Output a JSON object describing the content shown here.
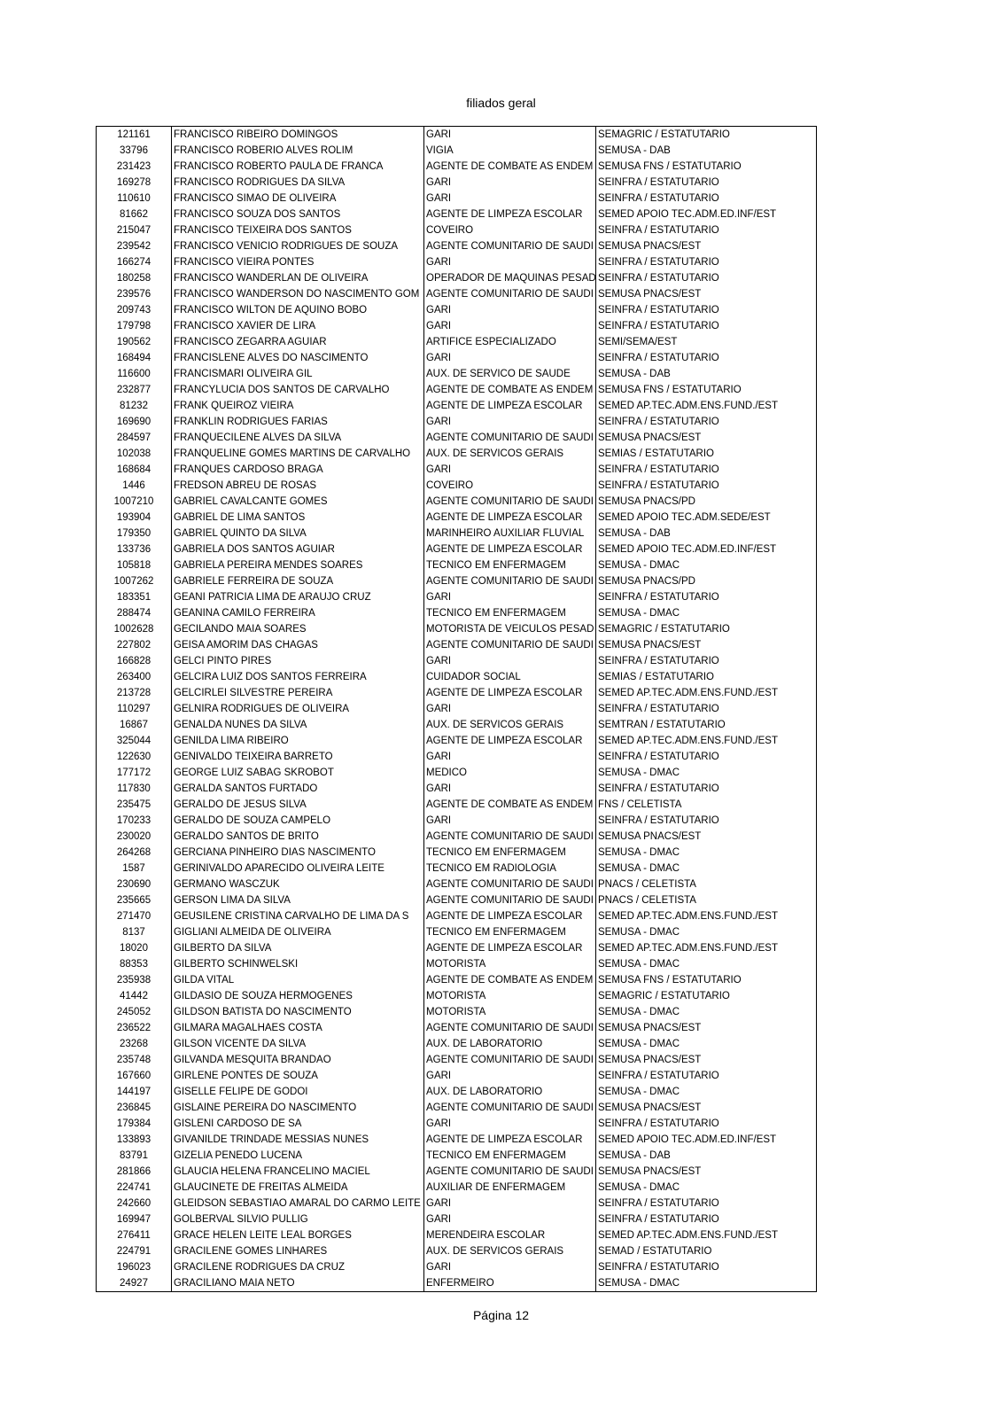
{
  "header": {
    "title": "filiados geral"
  },
  "table": {
    "rows": [
      [
        "121161",
        "FRANCISCO RIBEIRO DOMINGOS",
        "GARI",
        "SEMAGRIC / ESTATUTARIO"
      ],
      [
        "33796",
        "FRANCISCO ROBERIO ALVES ROLIM",
        "VIGIA",
        "SEMUSA - DAB"
      ],
      [
        "231423",
        "FRANCISCO ROBERTO PAULA DE FRANCA",
        "AGENTE DE COMBATE AS ENDEM",
        "SEMUSA FNS / ESTATUTARIO"
      ],
      [
        "169278",
        "FRANCISCO RODRIGUES DA SILVA",
        "GARI",
        "SEINFRA / ESTATUTARIO"
      ],
      [
        "110610",
        "FRANCISCO SIMAO DE OLIVEIRA",
        "GARI",
        "SEINFRA / ESTATUTARIO"
      ],
      [
        "81662",
        "FRANCISCO SOUZA DOS SANTOS",
        "AGENTE DE LIMPEZA ESCOLAR",
        "SEMED APOIO TEC.ADM.ED.INF/EST"
      ],
      [
        "215047",
        "FRANCISCO TEIXEIRA DOS SANTOS",
        "COVEIRO",
        "SEINFRA / ESTATUTARIO"
      ],
      [
        "239542",
        "FRANCISCO VENICIO RODRIGUES DE SOUZA",
        "AGENTE COMUNITARIO DE SAUDI",
        "SEMUSA PNACS/EST"
      ],
      [
        "166274",
        "FRANCISCO VIEIRA PONTES",
        "GARI",
        "SEINFRA / ESTATUTARIO"
      ],
      [
        "180258",
        "FRANCISCO WANDERLAN DE OLIVEIRA",
        "OPERADOR DE MAQUINAS PESAD",
        "SEINFRA / ESTATUTARIO"
      ],
      [
        "239576",
        "FRANCISCO WANDERSON DO NASCIMENTO GOM",
        "AGENTE COMUNITARIO DE SAUDI",
        "SEMUSA PNACS/EST"
      ],
      [
        "209743",
        "FRANCISCO WILTON DE AQUINO BOBO",
        "GARI",
        "SEINFRA / ESTATUTARIO"
      ],
      [
        "179798",
        "FRANCISCO XAVIER DE LIRA",
        "GARI",
        "SEINFRA / ESTATUTARIO"
      ],
      [
        "190562",
        "FRANCISCO ZEGARRA AGUIAR",
        "ARTIFICE ESPECIALIZADO",
        "SEMI/SEMA/EST"
      ],
      [
        "168494",
        "FRANCISLENE ALVES DO NASCIMENTO",
        "GARI",
        "SEINFRA / ESTATUTARIO"
      ],
      [
        "116600",
        "FRANCISMARI OLIVEIRA GIL",
        "AUX. DE SERVICO DE SAUDE",
        "SEMUSA - DAB"
      ],
      [
        "232877",
        "FRANCYLUCIA DOS SANTOS DE CARVALHO",
        "AGENTE DE COMBATE AS ENDEM",
        "SEMUSA FNS / ESTATUTARIO"
      ],
      [
        "81232",
        "FRANK QUEIROZ VIEIRA",
        "AGENTE DE LIMPEZA ESCOLAR",
        "SEMED AP.TEC.ADM.ENS.FUND./EST"
      ],
      [
        "169690",
        "FRANKLIN RODRIGUES FARIAS",
        "GARI",
        "SEINFRA / ESTATUTARIO"
      ],
      [
        "284597",
        "FRANQUECILENE ALVES DA SILVA",
        "AGENTE COMUNITARIO DE SAUDI",
        "SEMUSA PNACS/EST"
      ],
      [
        "102038",
        "FRANQUELINE GOMES MARTINS DE CARVALHO",
        "AUX. DE SERVICOS GERAIS",
        "SEMIAS / ESTATUTARIO"
      ],
      [
        "168684",
        "FRANQUES CARDOSO BRAGA",
        "GARI",
        "SEINFRA / ESTATUTARIO"
      ],
      [
        "1446",
        "FREDSON ABREU DE ROSAS",
        "COVEIRO",
        "SEINFRA / ESTATUTARIO"
      ],
      [
        "1007210",
        "GABRIEL CAVALCANTE GOMES",
        "AGENTE COMUNITARIO DE SAUDI",
        "SEMUSA PNACS/PD"
      ],
      [
        "193904",
        "GABRIEL DE LIMA SANTOS",
        "AGENTE DE LIMPEZA ESCOLAR",
        "SEMED APOIO TEC.ADM.SEDE/EST"
      ],
      [
        "179350",
        "GABRIEL QUINTO DA SILVA",
        "MARINHEIRO AUXILIAR FLUVIAL",
        "SEMUSA - DAB"
      ],
      [
        "133736",
        "GABRIELA DOS SANTOS AGUIAR",
        "AGENTE DE LIMPEZA ESCOLAR",
        "SEMED APOIO TEC.ADM.ED.INF/EST"
      ],
      [
        "105818",
        "GABRIELA PEREIRA MENDES SOARES",
        "TECNICO EM ENFERMAGEM",
        "SEMUSA - DMAC"
      ],
      [
        "1007262",
        "GABRIELE FERREIRA DE SOUZA",
        "AGENTE COMUNITARIO DE SAUDI",
        "SEMUSA PNACS/PD"
      ],
      [
        "183351",
        "GEANI PATRICIA LIMA DE ARAUJO CRUZ",
        "GARI",
        "SEINFRA / ESTATUTARIO"
      ],
      [
        "288474",
        "GEANINA CAMILO FERREIRA",
        "TECNICO EM ENFERMAGEM",
        "SEMUSA - DMAC"
      ],
      [
        "1002628",
        "GECILANDO MAIA SOARES",
        "MOTORISTA DE VEICULOS PESAD",
        "SEMAGRIC / ESTATUTARIO"
      ],
      [
        "227802",
        "GEISA AMORIM DAS CHAGAS",
        "AGENTE COMUNITARIO DE SAUDI",
        "SEMUSA PNACS/EST"
      ],
      [
        "166828",
        "GELCI PINTO PIRES",
        "GARI",
        "SEINFRA / ESTATUTARIO"
      ],
      [
        "263400",
        "GELCIRA LUIZ DOS SANTOS FERREIRA",
        "CUIDADOR SOCIAL",
        "SEMIAS / ESTATUTARIO"
      ],
      [
        "213728",
        "GELCIRLEI SILVESTRE PEREIRA",
        "AGENTE DE LIMPEZA ESCOLAR",
        "SEMED AP.TEC.ADM.ENS.FUND./EST"
      ],
      [
        "110297",
        "GELNIRA RODRIGUES DE OLIVEIRA",
        "GARI",
        "SEINFRA / ESTATUTARIO"
      ],
      [
        "16867",
        "GENALDA NUNES DA SILVA",
        "AUX. DE SERVICOS GERAIS",
        "SEMTRAN / ESTATUTARIO"
      ],
      [
        "325044",
        "GENILDA LIMA RIBEIRO",
        "AGENTE DE LIMPEZA ESCOLAR",
        "SEMED AP.TEC.ADM.ENS.FUND./EST"
      ],
      [
        "122630",
        "GENIVALDO TEIXEIRA BARRETO",
        "GARI",
        "SEINFRA / ESTATUTARIO"
      ],
      [
        "177172",
        "GEORGE LUIZ SABAG SKROBOT",
        "MEDICO",
        "SEMUSA - DMAC"
      ],
      [
        "117830",
        "GERALDA SANTOS FURTADO",
        "GARI",
        "SEINFRA / ESTATUTARIO"
      ],
      [
        "235475",
        "GERALDO DE JESUS SILVA",
        "AGENTE DE COMBATE AS ENDEM",
        "FNS / CELETISTA"
      ],
      [
        "170233",
        "GERALDO DE SOUZA CAMPELO",
        "GARI",
        "SEINFRA / ESTATUTARIO"
      ],
      [
        "230020",
        "GERALDO SANTOS DE BRITO",
        "AGENTE COMUNITARIO DE SAUDI",
        "SEMUSA PNACS/EST"
      ],
      [
        "264268",
        "GERCIANA PINHEIRO DIAS NASCIMENTO",
        "TECNICO EM ENFERMAGEM",
        "SEMUSA - DMAC"
      ],
      [
        "1587",
        "GERINIVALDO APARECIDO OLIVEIRA LEITE",
        "TECNICO EM RADIOLOGIA",
        "SEMUSA - DMAC"
      ],
      [
        "230690",
        "GERMANO WASCZUK",
        "AGENTE COMUNITARIO DE SAUDI",
        "PNACS / CELETISTA"
      ],
      [
        "235665",
        "GERSON LIMA DA SILVA",
        "AGENTE COMUNITARIO DE SAUDI",
        "PNACS / CELETISTA"
      ],
      [
        "271470",
        "GEUSILENE CRISTINA CARVALHO DE LIMA DA S",
        "AGENTE DE LIMPEZA ESCOLAR",
        "SEMED AP.TEC.ADM.ENS.FUND./EST"
      ],
      [
        "8137",
        "GIGLIANI ALMEIDA DE OLIVEIRA",
        "TECNICO EM ENFERMAGEM",
        "SEMUSA - DMAC"
      ],
      [
        "18020",
        "GILBERTO DA SILVA",
        "AGENTE DE LIMPEZA ESCOLAR",
        "SEMED AP.TEC.ADM.ENS.FUND./EST"
      ],
      [
        "88353",
        "GILBERTO SCHINWELSKI",
        "MOTORISTA",
        "SEMUSA - DMAC"
      ],
      [
        "235938",
        "GILDA VITAL",
        "AGENTE DE COMBATE AS ENDEM",
        "SEMUSA FNS / ESTATUTARIO"
      ],
      [
        "41442",
        "GILDASIO DE SOUZA HERMOGENES",
        "MOTORISTA",
        "SEMAGRIC / ESTATUTARIO"
      ],
      [
        "245052",
        "GILDSON BATISTA DO NASCIMENTO",
        "MOTORISTA",
        "SEMUSA - DMAC"
      ],
      [
        "236522",
        "GILMARA MAGALHAES COSTA",
        "AGENTE COMUNITARIO DE SAUDI",
        "SEMUSA PNACS/EST"
      ],
      [
        "23268",
        "GILSON VICENTE DA SILVA",
        "AUX. DE LABORATORIO",
        "SEMUSA - DMAC"
      ],
      [
        "235748",
        "GILVANDA MESQUITA BRANDAO",
        "AGENTE COMUNITARIO DE SAUDI",
        "SEMUSA PNACS/EST"
      ],
      [
        "167660",
        "GIRLENE PONTES DE SOUZA",
        "GARI",
        "SEINFRA / ESTATUTARIO"
      ],
      [
        "144197",
        "GISELLE FELIPE DE GODOI",
        "AUX. DE LABORATORIO",
        "SEMUSA - DMAC"
      ],
      [
        "236845",
        "GISLAINE PEREIRA DO NASCIMENTO",
        "AGENTE COMUNITARIO DE SAUDI",
        "SEMUSA PNACS/EST"
      ],
      [
        "179384",
        "GISLENI CARDOSO DE SA",
        "GARI",
        "SEINFRA / ESTATUTARIO"
      ],
      [
        "133893",
        "GIVANILDE TRINDADE MESSIAS NUNES",
        "AGENTE DE LIMPEZA ESCOLAR",
        "SEMED APOIO TEC.ADM.ED.INF/EST"
      ],
      [
        "83791",
        "GIZELIA PENEDO LUCENA",
        "TECNICO EM ENFERMAGEM",
        "SEMUSA - DAB"
      ],
      [
        "281866",
        "GLAUCIA HELENA FRANCELINO MACIEL",
        "AGENTE COMUNITARIO DE SAUDI",
        "SEMUSA PNACS/EST"
      ],
      [
        "224741",
        "GLAUCINETE DE FREITAS ALMEIDA",
        "AUXILIAR DE ENFERMAGEM",
        "SEMUSA - DMAC"
      ],
      [
        "242660",
        "GLEIDSON SEBASTIAO AMARAL DO CARMO LEITE",
        "GARI",
        "SEINFRA / ESTATUTARIO"
      ],
      [
        "169947",
        "GOLBERVAL SILVIO PULLIG",
        "GARI",
        "SEINFRA / ESTATUTARIO"
      ],
      [
        "276411",
        "GRACE HELEN LEITE LEAL BORGES",
        "MERENDEIRA ESCOLAR",
        "SEMED AP.TEC.ADM.ENS.FUND./EST"
      ],
      [
        "224791",
        "GRACILENE GOMES LINHARES",
        "AUX. DE SERVICOS GERAIS",
        "SEMAD / ESTATUTARIO"
      ],
      [
        "196023",
        "GRACILENE RODRIGUES DA CRUZ",
        "GARI",
        "SEINFRA / ESTATUTARIO"
      ],
      [
        "24927",
        "GRACILIANO MAIA NETO",
        "ENFERMEIRO",
        "SEMUSA - DMAC"
      ]
    ]
  },
  "footer": {
    "page": "Página 12"
  }
}
